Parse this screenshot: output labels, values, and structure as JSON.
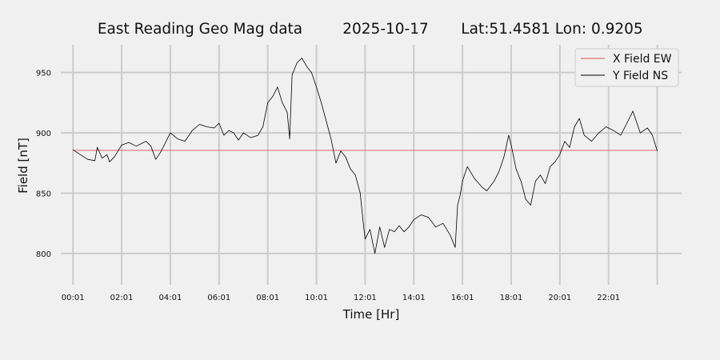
{
  "chart_data": {
    "type": "line",
    "title": "East Reading Geo Mag data",
    "subtitle_date": "2025-10-17",
    "subtitle_location": "Lat:51.4581  Lon: 0.9205",
    "xlabel": "Time  [Hr]",
    "ylabel": "Field  [nT]",
    "x_unit": "hours",
    "xlim": [
      -0.5,
      25.0
    ],
    "ylim": [
      782,
      973
    ],
    "x_ticks": [
      {
        "value": 0,
        "label": "00:01"
      },
      {
        "value": 2,
        "label": "02:01"
      },
      {
        "value": 4,
        "label": "04:01"
      },
      {
        "value": 6,
        "label": "06:01"
      },
      {
        "value": 8,
        "label": "08:01"
      },
      {
        "value": 10,
        "label": "10:01"
      },
      {
        "value": 12,
        "label": "12:01"
      },
      {
        "value": 14,
        "label": "14:01"
      },
      {
        "value": 16,
        "label": "16:01"
      },
      {
        "value": 18,
        "label": "18:01"
      },
      {
        "value": 20,
        "label": "20:01"
      },
      {
        "value": 22,
        "label": "22:01"
      },
      {
        "value": 24,
        "label": ""
      }
    ],
    "y_ticks": [
      800,
      850,
      900,
      950
    ],
    "grid": true,
    "legend_position": "top-right",
    "series": [
      {
        "name": "X Field EW",
        "color": "#e05050",
        "x": [
          0,
          24
        ],
        "y": [
          885.5,
          885.5
        ]
      },
      {
        "name": "Y Field NS",
        "color": "#000000",
        "x": [
          0,
          0.3,
          0.6,
          0.9,
          1.0,
          1.2,
          1.4,
          1.5,
          1.7,
          2.0,
          2.3,
          2.6,
          3.0,
          3.2,
          3.4,
          3.6,
          3.8,
          4.0,
          4.3,
          4.6,
          4.9,
          5.2,
          5.5,
          5.8,
          6.0,
          6.2,
          6.4,
          6.6,
          6.8,
          7.0,
          7.3,
          7.6,
          7.8,
          8.0,
          8.2,
          8.4,
          8.6,
          8.8,
          8.9,
          9.0,
          9.2,
          9.4,
          9.6,
          9.8,
          10.0,
          10.2,
          10.4,
          10.6,
          10.8,
          11.0,
          11.2,
          11.4,
          11.6,
          11.8,
          11.9,
          12.0,
          12.2,
          12.4,
          12.6,
          12.8,
          13.0,
          13.2,
          13.4,
          13.6,
          13.8,
          14.0,
          14.3,
          14.6,
          14.9,
          15.2,
          15.5,
          15.7,
          15.8,
          15.9,
          16.0,
          16.2,
          16.5,
          16.8,
          17.0,
          17.3,
          17.5,
          17.7,
          17.9,
          18.0,
          18.2,
          18.4,
          18.6,
          18.8,
          19.0,
          19.2,
          19.4,
          19.6,
          19.8,
          20.0,
          20.2,
          20.4,
          20.6,
          20.8,
          21.0,
          21.3,
          21.6,
          21.9,
          22.2,
          22.5,
          22.8,
          23.0,
          23.3,
          23.6,
          23.8,
          24.0
        ],
        "y": [
          886,
          882,
          878,
          877,
          888,
          879,
          882,
          876,
          880,
          890,
          892,
          889,
          893,
          889,
          878,
          884,
          892,
          900,
          895,
          893,
          902,
          907,
          905,
          904,
          908,
          898,
          902,
          900,
          894,
          900,
          896,
          898,
          905,
          925,
          930,
          938,
          925,
          917,
          895,
          948,
          958,
          962,
          955,
          950,
          938,
          925,
          910,
          895,
          875,
          885,
          880,
          870,
          865,
          850,
          830,
          812,
          820,
          800,
          822,
          805,
          820,
          818,
          823,
          818,
          822,
          828,
          832,
          830,
          822,
          825,
          815,
          805,
          840,
          848,
          860,
          872,
          862,
          855,
          852,
          860,
          868,
          880,
          898,
          890,
          870,
          860,
          845,
          840,
          860,
          865,
          858,
          872,
          876,
          882,
          893,
          888,
          905,
          912,
          898,
          893,
          900,
          905,
          902,
          898,
          910,
          918,
          900,
          904,
          898,
          885
        ]
      }
    ]
  }
}
